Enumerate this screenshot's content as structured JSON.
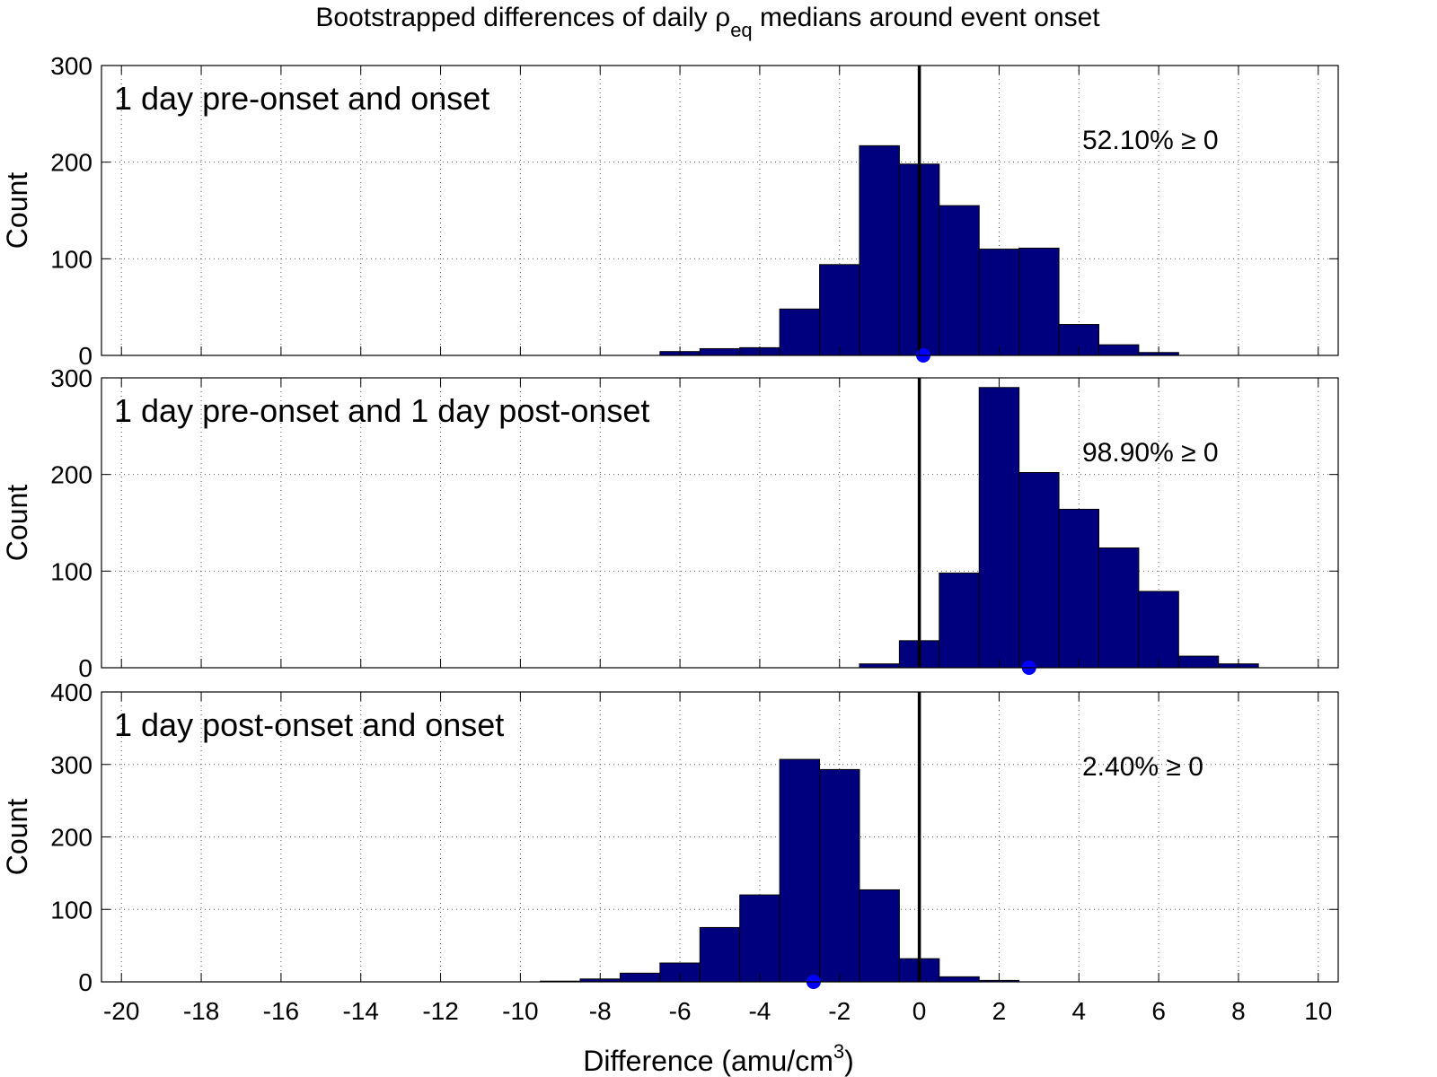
{
  "figure": {
    "title_main": "Bootstrapped differences of daily ρ",
    "title_sub": "eq",
    "title_end": " medians around event onset",
    "xlabel_main": "Difference (amu/cm",
    "xlabel_sup": "3",
    "xlabel_end": ")"
  },
  "chart_data": [
    {
      "type": "bar",
      "title": "1 day pre-onset and onset",
      "ylabel": "Count",
      "annotation": "52.10% ≥ 0",
      "xlim": [
        -20.5,
        10.5
      ],
      "ylim": [
        0,
        300
      ],
      "yticks": [
        0,
        100,
        200,
        300
      ],
      "bin_width": 1,
      "x": [
        -6,
        -5,
        -4,
        -3,
        -2,
        -1,
        0,
        1,
        2,
        3,
        4,
        5,
        6
      ],
      "values": [
        4,
        7,
        8,
        48,
        94,
        217,
        198,
        155,
        110,
        111,
        32,
        11,
        3
      ],
      "median": 0.1,
      "zero_line": 0
    },
    {
      "type": "bar",
      "title": "1 day pre-onset and 1 day post-onset",
      "ylabel": "Count",
      "annotation": "98.90% ≥ 0",
      "xlim": [
        -20.5,
        10.5
      ],
      "ylim": [
        0,
        300
      ],
      "yticks": [
        0,
        100,
        200,
        300
      ],
      "bin_width": 1,
      "x": [
        -1,
        0,
        1,
        2,
        3,
        4,
        5,
        6,
        7,
        8
      ],
      "values": [
        4,
        28,
        98,
        290,
        202,
        164,
        124,
        79,
        12,
        4
      ],
      "median": 2.75,
      "zero_line": 0
    },
    {
      "type": "bar",
      "title": "1 day post-onset and onset",
      "ylabel": "Count",
      "annotation": "2.40% ≥ 0",
      "xlim": [
        -20.5,
        10.5
      ],
      "ylim": [
        0,
        400
      ],
      "yticks": [
        0,
        100,
        200,
        300,
        400
      ],
      "bin_width": 1,
      "x": [
        -9,
        -8,
        -7,
        -6,
        -5,
        -4,
        -3,
        -2,
        -1,
        0,
        1,
        2
      ],
      "values": [
        1,
        4,
        12,
        26,
        75,
        120,
        307,
        293,
        127,
        32,
        7,
        2
      ],
      "median": -2.65,
      "zero_line": 0
    }
  ],
  "xticks": [
    -20,
    -18,
    -16,
    -14,
    -12,
    -10,
    -8,
    -6,
    -4,
    -2,
    0,
    2,
    4,
    6,
    8,
    10
  ]
}
